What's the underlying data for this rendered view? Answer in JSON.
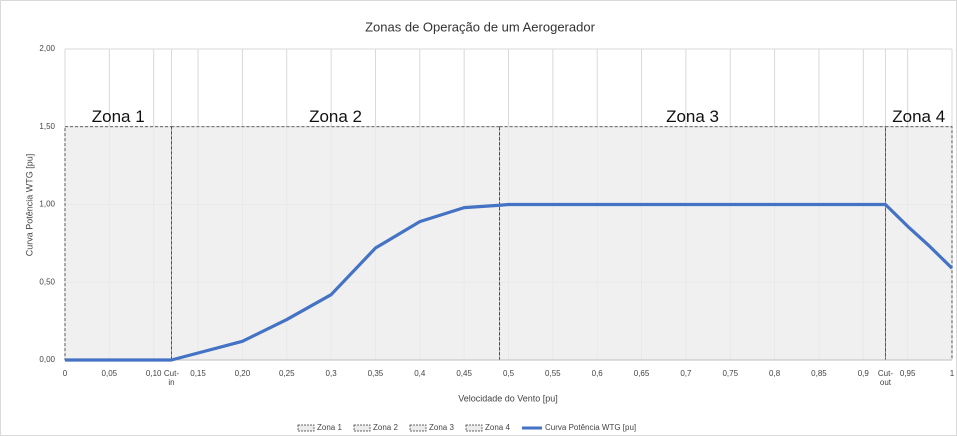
{
  "chart_data": {
    "type": "line",
    "title": "Zonas de Operação de um Aerogerador",
    "x_label": "Velocidade do Vento [pu]",
    "y_label": "Curva Potência WTG [pu]",
    "xlim": [
      0,
      1
    ],
    "ylim": [
      0,
      2
    ],
    "xticks": [
      0,
      {
        "value": 0.05,
        "label": "0,05"
      },
      {
        "value": 0.1,
        "label": "0,10"
      },
      {
        "value": 0.12,
        "label": "Cut-in"
      },
      {
        "value": 0.15,
        "label": "0,15"
      },
      {
        "value": 0.2,
        "label": "0,20"
      },
      {
        "value": 0.25,
        "label": "0,25"
      },
      {
        "value": 0.3,
        "label": "0,3"
      },
      {
        "value": 0.35,
        "label": "0,35"
      },
      {
        "value": 0.4,
        "label": "0,4"
      },
      {
        "value": 0.45,
        "label": "0,45"
      },
      {
        "value": 0.5,
        "label": "0,5"
      },
      {
        "value": 0.55,
        "label": "0,55"
      },
      {
        "value": 0.6,
        "label": "0,6"
      },
      {
        "value": 0.65,
        "label": "0,65"
      },
      {
        "value": 0.7,
        "label": "0,7"
      },
      {
        "value": 0.75,
        "label": "0,75"
      },
      {
        "value": 0.8,
        "label": "0,8"
      },
      {
        "value": 0.85,
        "label": "0,85"
      },
      {
        "value": 0.9,
        "label": "0,9"
      },
      {
        "value": 0.925,
        "label": "Cut-out"
      },
      {
        "value": 0.95,
        "label": "0,95"
      },
      1
    ],
    "yticks": [
      {
        "value": 0,
        "label": "0,00"
      },
      {
        "value": 0.5,
        "label": "0,50"
      },
      {
        "value": 1,
        "label": "1,00"
      },
      {
        "value": 1.5,
        "label": "1,50"
      },
      {
        "value": 2,
        "label": "2,00"
      }
    ],
    "grid": true,
    "zones": [
      {
        "name": "Zona 1",
        "x": [
          0,
          0.12
        ],
        "value": 1.5,
        "color": "#ececec"
      },
      {
        "name": "Zona 2",
        "x": [
          0.12,
          0.49
        ],
        "value": 1.5,
        "color": "#ececec"
      },
      {
        "name": "Zona 3",
        "x": [
          0.49,
          0.925
        ],
        "value": 1.5,
        "color": "#ececec"
      },
      {
        "name": "Zona 4",
        "x": [
          0.925,
          1
        ],
        "value": 1.5,
        "color": "#ececec"
      }
    ],
    "series": [
      {
        "name": "Curva Potência WTG [pu]",
        "color": "#4472c4",
        "x": [
          0,
          0.12,
          0.15,
          0.2,
          0.25,
          0.3,
          0.35,
          0.4,
          0.45,
          0.49,
          0.5,
          0.925,
          0.95,
          0.975,
          1
        ],
        "values": [
          0,
          0,
          0.045,
          0.12,
          0.26,
          0.42,
          0.72,
          0.89,
          0.98,
          0.995,
          1,
          1,
          0.86,
          0.73,
          0.59
        ]
      }
    ]
  }
}
